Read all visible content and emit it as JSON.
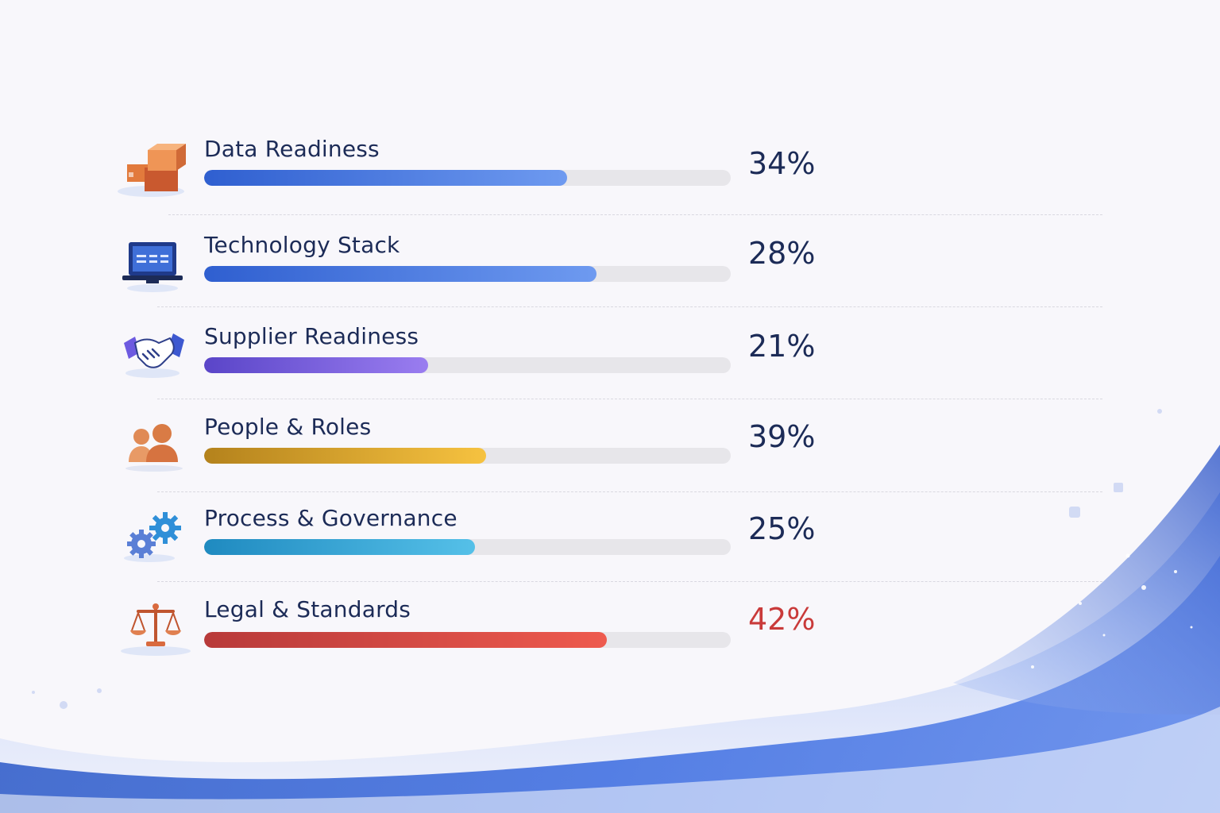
{
  "chart_data": {
    "type": "bar",
    "orientation": "horizontal",
    "categories": [
      "Data Readiness",
      "Technology Stack",
      "Supplier Readiness",
      "People & Roles",
      "Process & Governance",
      "Legal & Standards"
    ],
    "values": [
      34,
      28,
      21,
      39,
      25,
      42
    ],
    "value_labels": [
      "34%",
      "28%",
      "21%",
      "39%",
      "25%",
      "42%"
    ],
    "bar_fill_fraction": [
      0.69,
      0.745,
      0.425,
      0.535,
      0.515,
      0.765
    ],
    "unit": "%",
    "title": "",
    "xlabel": "",
    "ylabel": "",
    "grid": false,
    "legend": "none"
  },
  "rows": [
    {
      "label": "Data Readiness",
      "pct": "34%",
      "icon": "boxes-icon",
      "color_start": "#2f5fd0",
      "color_end": "#6e9af0",
      "pct_color": "#1c2b57"
    },
    {
      "label": "Technology Stack",
      "pct": "28%",
      "icon": "laptop-icon",
      "color_start": "#2f5fd0",
      "color_end": "#6e9af0",
      "pct_color": "#1c2b57"
    },
    {
      "label": "Supplier Readiness",
      "pct": "21%",
      "icon": "handshake-icon",
      "color_start": "#5a45c8",
      "color_end": "#9a7df0",
      "pct_color": "#1c2b57"
    },
    {
      "label": "People & Roles",
      "pct": "39%",
      "icon": "people-icon",
      "color_start": "#b4821c",
      "color_end": "#f6c240",
      "pct_color": "#1c2b57"
    },
    {
      "label": "Process & Governance",
      "pct": "25%",
      "icon": "gears-icon",
      "color_start": "#1f8ac0",
      "color_end": "#55c0e8",
      "pct_color": "#1c2b57"
    },
    {
      "label": "Legal & Standards",
      "pct": "42%",
      "icon": "scales-icon",
      "color_start": "#b83a3a",
      "color_end": "#ee5a4e",
      "pct_color": "#c93a3a"
    }
  ]
}
